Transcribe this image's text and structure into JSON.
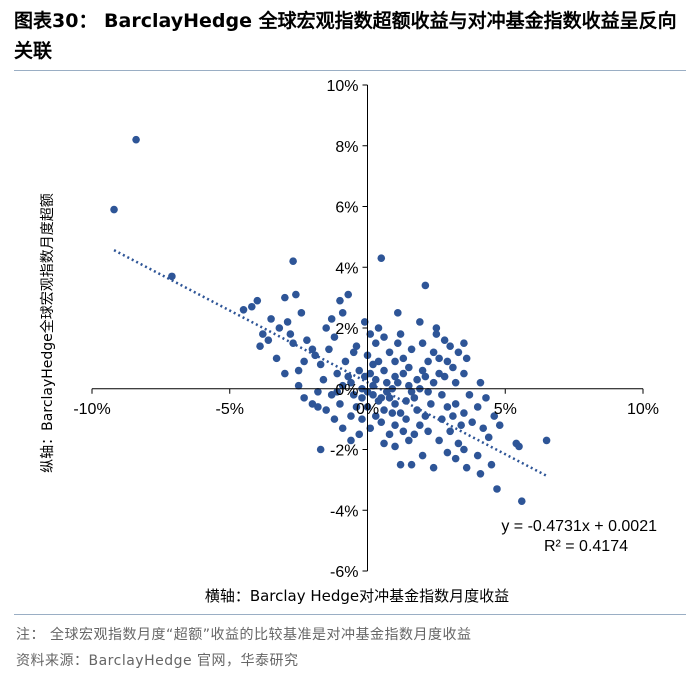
{
  "header": {
    "title": "图表30： BarclayHedge 全球宏观指数超额收益与对冲基金指数收益呈反向关联"
  },
  "footer": {
    "note": "注： 全球宏观指数月度“超额”收益的比较基准是对冲基金指数月度收益",
    "source": "资料来源：BarclayHedge 官网，华泰研究"
  },
  "colors": {
    "points": "#2e5597",
    "trend": "#2e5597",
    "axis": "#000000"
  },
  "chart_data": {
    "type": "scatter",
    "xlabel": "横轴：Barclay Hedge对冲基金指数月度收益",
    "ylabel": "纵轴：BarclayHedge全球宏观指数月度超额",
    "xlim": [
      -10,
      10
    ],
    "ylim": [
      -6,
      10
    ],
    "x_ticks": [
      "-10%",
      "-5%",
      "0%",
      "5%",
      "10%"
    ],
    "y_ticks": [
      "-6%",
      "-4%",
      "-2%",
      "0%",
      "2%",
      "4%",
      "6%",
      "8%",
      "10%"
    ],
    "grid": false,
    "trendline": {
      "slope": -0.4731,
      "intercept": 0.21,
      "x_range": [
        -9.2,
        6.5
      ],
      "style": "dotted"
    },
    "equation": "y = -0.4731x + 0.0021",
    "r_squared": "R² = 0.4174",
    "points": [
      [
        -8.4,
        8.2
      ],
      [
        -9.2,
        5.9
      ],
      [
        -7.1,
        3.7
      ],
      [
        -2.7,
        4.2
      ],
      [
        -3.5,
        2.3
      ],
      [
        -3.2,
        2.0
      ],
      [
        -3.8,
        1.8
      ],
      [
        -4.2,
        2.7
      ],
      [
        -4.5,
        2.6
      ],
      [
        -4.0,
        2.9
      ],
      [
        -3.0,
        3.0
      ],
      [
        -2.6,
        3.1
      ],
      [
        -2.4,
        2.5
      ],
      [
        -2.8,
        1.8
      ],
      [
        -2.9,
        2.2
      ],
      [
        -2.7,
        1.5
      ],
      [
        -3.3,
        1.0
      ],
      [
        -3.9,
        1.4
      ],
      [
        -3.6,
        1.6
      ],
      [
        -2.2,
        1.6
      ],
      [
        -1.9,
        1.1
      ],
      [
        -1.7,
        0.8
      ],
      [
        -1.4,
        1.3
      ],
      [
        -1.5,
        2.0
      ],
      [
        -1.3,
        2.3
      ],
      [
        -0.9,
        2.5
      ],
      [
        -0.7,
        3.1
      ],
      [
        -1.0,
        2.9
      ],
      [
        -1.2,
        1.7
      ],
      [
        -2.0,
        1.3
      ],
      [
        -2.3,
        0.9
      ],
      [
        -2.5,
        0.1
      ],
      [
        -1.8,
        -0.1
      ],
      [
        -1.6,
        0.3
      ],
      [
        -1.1,
        0.5
      ],
      [
        -0.8,
        0.9
      ],
      [
        -0.5,
        1.2
      ],
      [
        -0.4,
        1.4
      ],
      [
        -0.6,
        0.2
      ],
      [
        -0.3,
        0.6
      ],
      [
        -0.2,
        -0.3
      ],
      [
        -1.0,
        -0.5
      ],
      [
        -1.3,
        -0.2
      ],
      [
        -1.5,
        -0.7
      ],
      [
        -1.8,
        -0.6
      ],
      [
        -1.2,
        -1.0
      ],
      [
        -0.9,
        -1.3
      ],
      [
        -0.6,
        -0.9
      ],
      [
        -0.4,
        -0.6
      ],
      [
        -1.7,
        -2.0
      ],
      [
        -0.1,
        2.2
      ],
      [
        0.5,
        4.3
      ],
      [
        0.4,
        2.0
      ],
      [
        0.6,
        1.7
      ],
      [
        0.8,
        1.2
      ],
      [
        1.1,
        1.5
      ],
      [
        1.3,
        1.0
      ],
      [
        1.5,
        0.7
      ],
      [
        1.0,
        0.4
      ],
      [
        0.7,
        0.2
      ],
      [
        0.3,
        0.3
      ],
      [
        0.2,
        0.8
      ],
      [
        0.0,
        1.1
      ],
      [
        -0.1,
        0.4
      ],
      [
        0.2,
        -0.2
      ],
      [
        0.4,
        -0.4
      ],
      [
        0.6,
        -0.7
      ],
      [
        0.8,
        -0.3
      ],
      [
        1.0,
        -0.5
      ],
      [
        1.2,
        -0.8
      ],
      [
        1.4,
        -0.4
      ],
      [
        1.6,
        -0.1
      ],
      [
        1.8,
        0.3
      ],
      [
        2.0,
        0.6
      ],
      [
        2.2,
        0.9
      ],
      [
        2.4,
        1.2
      ],
      [
        2.6,
        1.0
      ],
      [
        2.1,
        3.4
      ],
      [
        2.5,
        1.8
      ],
      [
        2.0,
        1.5
      ],
      [
        1.1,
        2.5
      ],
      [
        1.9,
        2.2
      ],
      [
        3.0,
        1.4
      ],
      [
        3.3,
        1.2
      ],
      [
        3.6,
        1.0
      ],
      [
        3.1,
        0.7
      ],
      [
        2.8,
        0.4
      ],
      [
        2.7,
        -0.2
      ],
      [
        2.3,
        -0.5
      ],
      [
        2.1,
        -0.9
      ],
      [
        1.9,
        -1.2
      ],
      [
        1.7,
        -1.5
      ],
      [
        1.5,
        -1.7
      ],
      [
        1.3,
        -1.4
      ],
      [
        1.0,
        -1.2
      ],
      [
        0.8,
        -1.5
      ],
      [
        0.5,
        -1.1
      ],
      [
        0.3,
        -0.9
      ],
      [
        0.1,
        -1.3
      ],
      [
        0.0,
        -0.6
      ],
      [
        -0.2,
        -1.0
      ],
      [
        3.2,
        -0.5
      ],
      [
        3.5,
        -0.8
      ],
      [
        3.8,
        -1.1
      ],
      [
        4.0,
        -0.6
      ],
      [
        4.2,
        -1.3
      ],
      [
        4.4,
        -1.6
      ],
      [
        3.3,
        -1.8
      ],
      [
        3.0,
        -1.4
      ],
      [
        2.6,
        -1.7
      ],
      [
        2.9,
        -2.1
      ],
      [
        3.2,
        -2.3
      ],
      [
        3.5,
        -2.0
      ],
      [
        2.4,
        -2.6
      ],
      [
        2.0,
        -2.2
      ],
      [
        1.6,
        -2.5
      ],
      [
        1.2,
        -2.5
      ],
      [
        4.6,
        -0.9
      ],
      [
        4.8,
        -1.2
      ],
      [
        4.5,
        -2.5
      ],
      [
        4.1,
        -2.8
      ],
      [
        4.0,
        -2.2
      ],
      [
        3.6,
        -2.6
      ],
      [
        5.4,
        -1.8
      ],
      [
        5.5,
        -1.9
      ],
      [
        6.5,
        -1.7
      ],
      [
        4.7,
        -3.3
      ],
      [
        5.6,
        -3.7
      ],
      [
        3.2,
        0.2
      ],
      [
        3.5,
        0.5
      ],
      [
        0.9,
        0.0
      ],
      [
        1.1,
        0.2
      ],
      [
        1.3,
        0.5
      ],
      [
        1.5,
        0.1
      ],
      [
        1.7,
        -0.3
      ],
      [
        0.6,
        0.6
      ],
      [
        0.7,
        -0.1
      ],
      [
        0.9,
        -0.8
      ],
      [
        0.2,
        0.1
      ],
      [
        0.4,
        0.9
      ],
      [
        2.2,
        -0.1
      ],
      [
        2.4,
        0.2
      ],
      [
        2.6,
        0.5
      ],
      [
        2.9,
        0.9
      ],
      [
        3.1,
        -0.9
      ],
      [
        1.4,
        -1.0
      ],
      [
        1.8,
        -0.7
      ],
      [
        2.2,
        -1.4
      ],
      [
        0.5,
        -0.3
      ],
      [
        1.0,
        0.9
      ],
      [
        0.3,
        1.5
      ],
      [
        2.8,
        1.6
      ],
      [
        3.5,
        1.5
      ],
      [
        -0.5,
        -0.2
      ],
      [
        -0.7,
        0.4
      ],
      [
        -0.2,
        0.0
      ],
      [
        0.1,
        0.5
      ],
      [
        0.0,
        -0.1
      ],
      [
        2.5,
        2.0
      ],
      [
        1.2,
        1.8
      ],
      [
        0.1,
        1.8
      ],
      [
        1.6,
        1.3
      ],
      [
        -0.3,
        -1.5
      ],
      [
        -0.6,
        -1.7
      ],
      [
        0.6,
        -1.8
      ],
      [
        1.0,
        -1.9
      ],
      [
        2.7,
        -1.0
      ],
      [
        2.9,
        -0.6
      ],
      [
        -2.3,
        -0.3
      ],
      [
        -2.0,
        -0.5
      ],
      [
        -1.1,
        -0.1
      ],
      [
        -0.9,
        0.1
      ],
      [
        3.7,
        -0.2
      ],
      [
        4.1,
        0.2
      ],
      [
        4.3,
        -0.3
      ],
      [
        3.4,
        -1.2
      ],
      [
        1.9,
        0.0
      ],
      [
        2.1,
        0.4
      ],
      [
        -3.0,
        0.5
      ],
      [
        -2.5,
        0.6
      ]
    ]
  }
}
